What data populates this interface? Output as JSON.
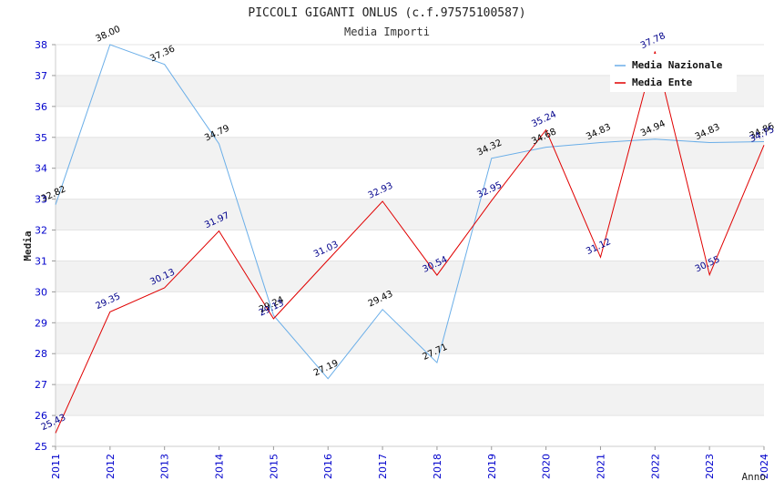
{
  "chart_data": {
    "type": "line",
    "title": "PICCOLI GIGANTI ONLUS (c.f.97575100587)",
    "subtitle": "Media Importi",
    "xlabel": "Anno",
    "ylabel": "Media",
    "categories": [
      "2011",
      "2012",
      "2013",
      "2014",
      "2015",
      "2016",
      "2017",
      "2018",
      "2019",
      "2020",
      "2021",
      "2022",
      "2023",
      "2024"
    ],
    "ylim": [
      25,
      38
    ],
    "yticks": [
      25,
      26,
      27,
      28,
      29,
      30,
      31,
      32,
      33,
      34,
      35,
      36,
      37,
      38
    ],
    "grid": "horizontal bands",
    "legend_position": "top-right",
    "series": [
      {
        "name": "Media Nazionale",
        "color": "#6aaee8",
        "label_color": "#000000",
        "values": [
          32.82,
          38.0,
          37.36,
          34.79,
          29.24,
          27.19,
          29.43,
          27.71,
          34.32,
          34.68,
          34.83,
          34.94,
          34.83,
          34.86
        ],
        "labels": [
          "32.82",
          "38.00",
          "37.36",
          "34.79",
          "29.24",
          "27.19",
          "29.43",
          "27.71",
          "34.32",
          "34.68",
          "34.83",
          "34.94",
          "34.83",
          "34.86"
        ]
      },
      {
        "name": "Media Ente",
        "color": "#e00000",
        "label_color": "#00008b",
        "values": [
          25.43,
          29.35,
          30.13,
          31.97,
          29.13,
          31.03,
          32.93,
          30.54,
          32.95,
          35.24,
          31.12,
          37.78,
          30.55,
          34.75
        ],
        "labels": [
          "25.43",
          "29.35",
          "30.13",
          "31.97",
          "29.13",
          "31.03",
          "32.93",
          "30.54",
          "32.95",
          "35.24",
          "31.12",
          "37.78",
          "30.55",
          "34.75"
        ]
      }
    ]
  }
}
